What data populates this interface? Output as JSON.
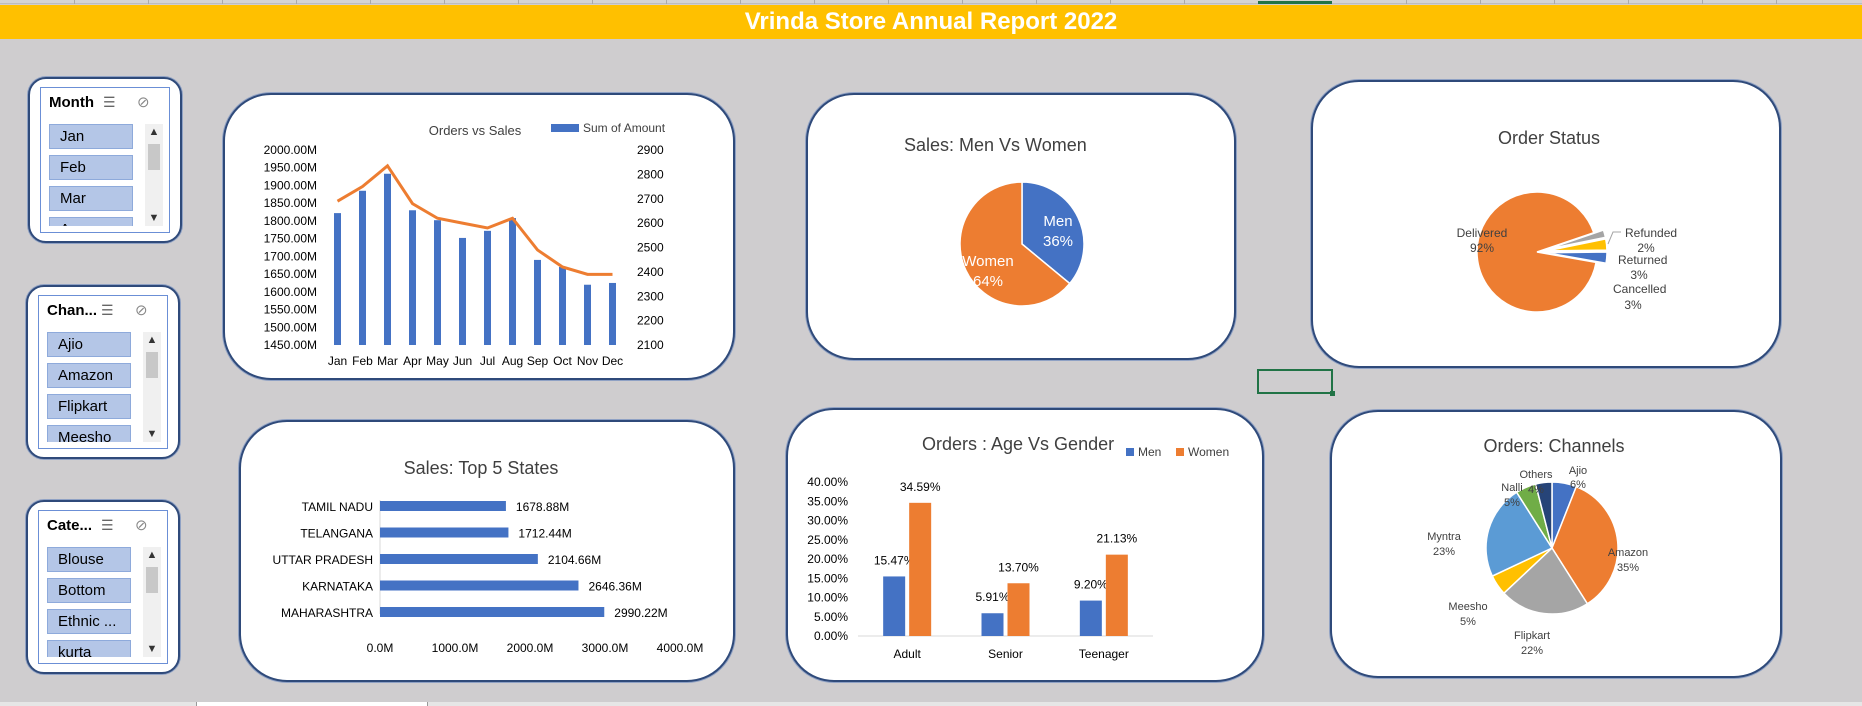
{
  "banner": {
    "title": "Vrinda Store Annual Report 2022"
  },
  "slicers": {
    "month": {
      "header": "Month",
      "items": [
        "Jan",
        "Feb",
        "Mar",
        "Apr"
      ]
    },
    "channel": {
      "header": "Chan...",
      "items": [
        "Ajio",
        "Amazon",
        "Flipkart",
        "Meesho"
      ]
    },
    "category": {
      "header": "Cate...",
      "items": [
        "Blouse",
        "Bottom",
        "Ethnic ...",
        "kurta"
      ]
    }
  },
  "icons": {
    "multiselect": "multi-select-icon",
    "clear_filter": "clear-filter-icon",
    "scroll_up": "scroll-up-icon",
    "scroll_down": "scroll-down-icon"
  },
  "colors": {
    "accent": "#ffc000",
    "blue": "#4472c4",
    "orange": "#ed7d31",
    "gray": "#a5a5a5",
    "yellow": "#ffc000",
    "lightblue": "#5b9bd5",
    "green": "#70ad47",
    "navy": "#264478"
  },
  "chart_data": [
    {
      "id": "orders_vs_sales",
      "type": "bar",
      "title": "Orders vs Sales",
      "categories": [
        "Jan",
        "Feb",
        "Mar",
        "Apr",
        "May",
        "Jun",
        "Jul",
        "Aug",
        "Sep",
        "Oct",
        "Nov",
        "Dec"
      ],
      "series": [
        {
          "name": "Sum of Amount",
          "type": "bar",
          "axis": "left",
          "values": [
            1822,
            1885,
            1933,
            1830,
            1802,
            1752,
            1772,
            1808,
            1690,
            1670,
            1620,
            1625
          ]
        },
        {
          "type": "line",
          "axis": "right",
          "values": [
            2690,
            2750,
            2835,
            2680,
            2620,
            2600,
            2580,
            2620,
            2490,
            2420,
            2390,
            2390
          ]
        }
      ],
      "yticks_left": [
        "2000.00M",
        "1950.00M",
        "1900.00M",
        "1850.00M",
        "1800.00M",
        "1750.00M",
        "1700.00M",
        "1650.00M",
        "1600.00M",
        "1550.00M",
        "1500.00M",
        "1450.00M"
      ],
      "yticks_right": [
        "2900",
        "2800",
        "2700",
        "2600",
        "2500",
        "2400",
        "2300",
        "2200",
        "2100"
      ],
      "ylim_left": [
        1450,
        2000
      ],
      "ylim_right": [
        2100,
        2900
      ],
      "legend": "top-right"
    },
    {
      "id": "sales_men_women",
      "type": "pie",
      "title": "Sales: Men Vs Women",
      "slices": [
        {
          "label": "Men",
          "value": 36,
          "pct": "36%"
        },
        {
          "label": "Women",
          "value": 64,
          "pct": "64%"
        }
      ]
    },
    {
      "id": "order_status",
      "type": "pie",
      "title": "Order Status",
      "slices": [
        {
          "label": "Delivered",
          "value": 92,
          "pct": "92%"
        },
        {
          "label": "Refunded",
          "value": 2,
          "pct": "2%"
        },
        {
          "label": "Returned",
          "value": 3,
          "pct": "3%"
        },
        {
          "label": "Cancelled",
          "value": 3,
          "pct": "3%"
        }
      ]
    },
    {
      "id": "top5_states",
      "type": "bar",
      "orientation": "horizontal",
      "title": "Sales: Top 5 States",
      "categories": [
        "TAMIL NADU",
        "TELANGANA",
        "UTTAR PRADESH",
        "KARNATAKA",
        "MAHARASHTRA"
      ],
      "values": [
        1678.88,
        1712.44,
        2104.66,
        2646.36,
        2990.22
      ],
      "data_labels": [
        "1678.88M",
        "1712.44M",
        "2104.66M",
        "2646.36M",
        "2990.22M"
      ],
      "xticks": [
        "0.0M",
        "1000.0M",
        "2000.0M",
        "3000.0M",
        "4000.0M"
      ],
      "xlim": [
        0,
        4000
      ]
    },
    {
      "id": "age_gender",
      "type": "bar",
      "title": "Orders : Age Vs Gender",
      "categories": [
        "Adult",
        "Senior",
        "Teenager"
      ],
      "series": [
        {
          "name": "Men",
          "values": [
            15.47,
            5.91,
            9.2
          ],
          "labels": [
            "15.47%",
            "5.91%",
            "9.20%"
          ]
        },
        {
          "name": "Women",
          "values": [
            34.59,
            13.7,
            21.13
          ],
          "labels": [
            "34.59%",
            "13.70%",
            "21.13%"
          ]
        }
      ],
      "yticks": [
        "40.00%",
        "35.00%",
        "30.00%",
        "25.00%",
        "20.00%",
        "15.00%",
        "10.00%",
        "5.00%",
        "0.00%"
      ],
      "ylim": [
        0,
        40
      ],
      "legend": "top-right"
    },
    {
      "id": "orders_channels",
      "type": "pie",
      "title": "Orders: Channels",
      "slices": [
        {
          "label": "Ajio",
          "value": 6,
          "pct": "6%"
        },
        {
          "label": "Amazon",
          "value": 35,
          "pct": "35%"
        },
        {
          "label": "Flipkart",
          "value": 22,
          "pct": "22%"
        },
        {
          "label": "Meesho",
          "value": 5,
          "pct": "5%"
        },
        {
          "label": "Myntra",
          "value": 23,
          "pct": "23%"
        },
        {
          "label": "Nalli",
          "value": 5,
          "pct": "5%"
        },
        {
          "label": "Others",
          "value": 4,
          "pct": "4%"
        }
      ]
    }
  ]
}
